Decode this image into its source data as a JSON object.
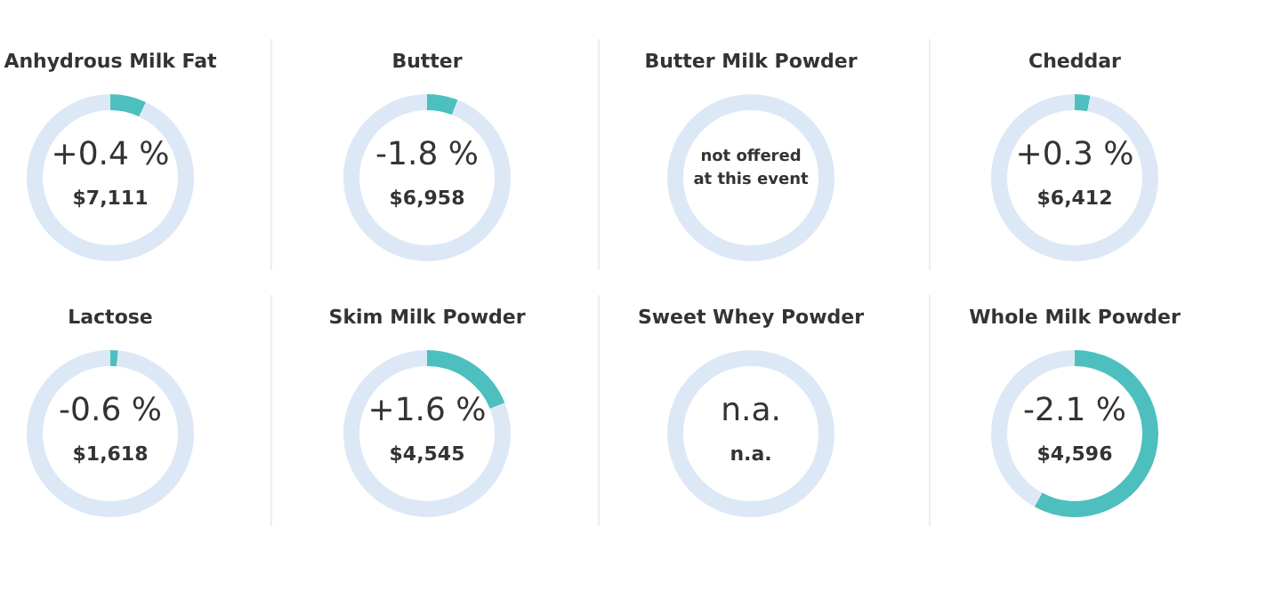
{
  "chart_data": [
    {
      "type": "donut",
      "title": "Anhydrous Milk Fat",
      "categories": [
        null,
        null
      ],
      "values": [
        7,
        93
      ],
      "colors": [
        "#4dbfbf",
        "#dde8f6"
      ],
      "annotations": [
        "+0.4 %",
        "$7,111"
      ]
    },
    {
      "type": "donut",
      "title": "Butter",
      "categories": [
        null,
        null
      ],
      "values": [
        6,
        94
      ],
      "colors": [
        "#4dbfbf",
        "#dde8f6"
      ],
      "annotations": [
        "-1.8 %",
        "$6,958"
      ]
    },
    {
      "type": "other",
      "title": "Butter Milk Powder",
      "annotations": [
        "not offered\nat this event"
      ]
    },
    {
      "type": "donut",
      "title": "Cheddar",
      "categories": [
        null,
        null
      ],
      "values": [
        3,
        97
      ],
      "colors": [
        "#4dbfbf",
        "#dde8f6"
      ],
      "annotations": [
        "+0.3 %",
        "$6,412"
      ]
    },
    {
      "type": "donut",
      "title": "Lactose",
      "categories": [
        null,
        null
      ],
      "values": [
        1.5,
        98.5
      ],
      "colors": [
        "#4dbfbf",
        "#dde8f6"
      ],
      "annotations": [
        "-0.6 %",
        "$1,618"
      ]
    },
    {
      "type": "donut",
      "title": "Skim Milk Powder",
      "categories": [
        null,
        null
      ],
      "values": [
        19,
        81
      ],
      "colors": [
        "#4dbfbf",
        "#dde8f6"
      ],
      "annotations": [
        "+1.6 %",
        "$4,545"
      ]
    },
    {
      "type": "other",
      "title": "Sweet Whey Powder",
      "annotations": [
        "n.a.",
        "n.a."
      ]
    },
    {
      "type": "donut",
      "title": "Whole Milk Powder",
      "categories": [
        null,
        null
      ],
      "values": [
        58,
        42
      ],
      "colors": [
        "#4dbfbf",
        "#dde8f6"
      ],
      "annotations": [
        "-2.1 %",
        "$4,596"
      ]
    }
  ]
}
